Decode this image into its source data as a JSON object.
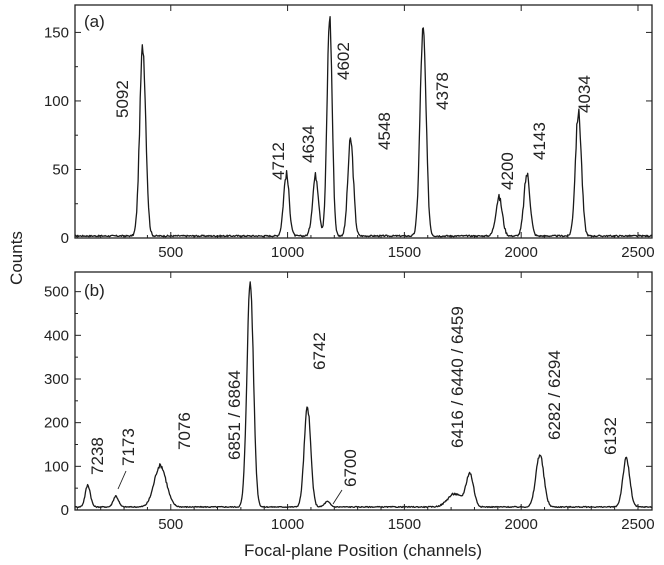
{
  "chart_data": {
    "shared": {
      "xlabel": "Focal-plane Position (channels)",
      "ylabel": "Counts",
      "xlim": [
        90,
        2560
      ]
    },
    "panels": [
      {
        "type": "line",
        "panel_label": "(a)",
        "ylim": [
          0,
          170
        ],
        "yticks": [
          0,
          50,
          100,
          150
        ],
        "xticks": [
          500,
          1000,
          1500,
          2000,
          2500
        ],
        "baseline": 1.5,
        "peaks": [
          {
            "label": "5092",
            "x": 380,
            "height": 138,
            "width": 13
          },
          {
            "label": "4712",
            "x": 995,
            "height": 45,
            "width": 12
          },
          {
            "label": "4634",
            "x": 1120,
            "height": 44,
            "width": 13
          },
          {
            "label": "4602",
            "x": 1180,
            "height": 160,
            "width": 11
          },
          {
            "label": "4548",
            "x": 1270,
            "height": 70,
            "width": 12
          },
          {
            "label": "4378",
            "x": 1580,
            "height": 150,
            "width": 13
          },
          {
            "label": "4200",
            "x": 1905,
            "height": 28,
            "width": 14
          },
          {
            "label": "4143",
            "x": 2025,
            "height": 45,
            "width": 13
          },
          {
            "label": "4034",
            "x": 2245,
            "height": 90,
            "width": 13
          }
        ]
      },
      {
        "type": "line",
        "panel_label": "(b)",
        "ylim": [
          0,
          545
        ],
        "yticks": [
          0,
          100,
          200,
          300,
          400,
          500
        ],
        "xticks": [
          500,
          1000,
          1500,
          2000,
          2500
        ],
        "baseline": 7,
        "peaks": [
          {
            "label": "7238",
            "x": 145,
            "height": 50,
            "width": 11
          },
          {
            "label": "7173",
            "x": 265,
            "height": 25,
            "width": 11
          },
          {
            "label": "7076",
            "x": 455,
            "height": 95,
            "width": 26
          },
          {
            "label": "6851 / 6864",
            "x": 840,
            "height": 515,
            "width": 14
          },
          {
            "label": "6742",
            "x": 1085,
            "height": 228,
            "width": 14
          },
          {
            "label": "6700",
            "x": 1170,
            "height": 12,
            "width": 12
          },
          {
            "label": "6416 / 6440 / 6459",
            "x": 1780,
            "height": 75,
            "width": 16
          },
          {
            "label": "",
            "x": 1715,
            "height": 30,
            "width": 30
          },
          {
            "label": "6282 / 6294",
            "x": 2080,
            "height": 120,
            "width": 17
          },
          {
            "label": "6132",
            "x": 2450,
            "height": 110,
            "width": 15
          }
        ]
      }
    ]
  }
}
